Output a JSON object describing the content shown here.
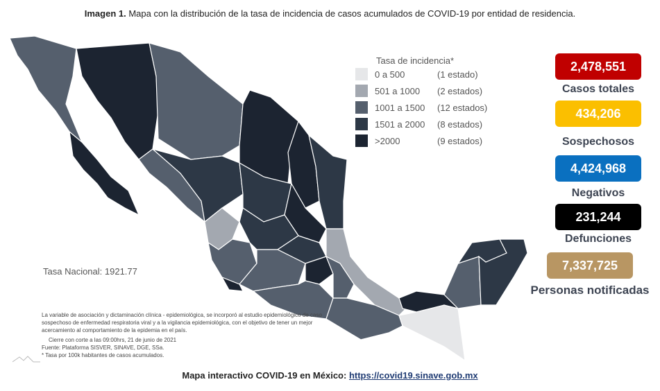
{
  "title": {
    "bold": "Imagen 1.",
    "text": " Mapa con la distribución de la tasa de incidencia de casos acumulados de COVID-19 por entidad de residencia."
  },
  "legend": {
    "title": "Tasa de incidencia*",
    "items": [
      {
        "range": "0 a 500",
        "count": "(1 estado)",
        "color": "#e6e7e9"
      },
      {
        "range": "501 a 1000",
        "count": "(2 estados)",
        "color": "#a3a8b0"
      },
      {
        "range": "1001 a 1500",
        "count": "(12 estados)",
        "color": "#555f6d"
      },
      {
        "range": "1501 a 2000",
        "count": "(8 estados)",
        "color": "#2d3846"
      },
      {
        "range": ">2000",
        "count": "(9 estados)",
        "color": "#1c2431"
      }
    ]
  },
  "tasa_nacional": "Tasa Nacional: 1921.77",
  "notes": {
    "p1": "La variable de asociación y dictaminación clínica - epidemiológica, se incorporó al estudio epidemiológico de caso sospechoso de enfermedad respiratoria viral y a la vigilancia epidemiológica, con el objetivo de tener un mejor acercamiento al comportamiento de la epidemia en el país.",
    "cierre": "Cierre con corte a las 09:00hrs, 21 de junio de 2021",
    "fuente": "Fuente: Plataforma SISVER, SINAVE, DGE, SSa.",
    "tasa": "* Tasa por 100k habitantes de casos acumulados."
  },
  "stats": [
    {
      "value": "2,478,551",
      "label": "Casos totales",
      "color": "#c00000"
    },
    {
      "value": "434,206",
      "label": "Sospechosos",
      "color": "#fbbf00"
    },
    {
      "value": "4,424,968",
      "label": "Negativos",
      "color": "#0a70c0"
    },
    {
      "value": "231,244",
      "label": "Defunciones",
      "color": "#000000"
    },
    {
      "value": "7,337,725",
      "label": "Personas notificadas",
      "color": "#b89663"
    }
  ],
  "footer": {
    "text": "Mapa interactivo COVID-19 en México: ",
    "link": "https://covid19.sinave.gob.mx"
  }
}
